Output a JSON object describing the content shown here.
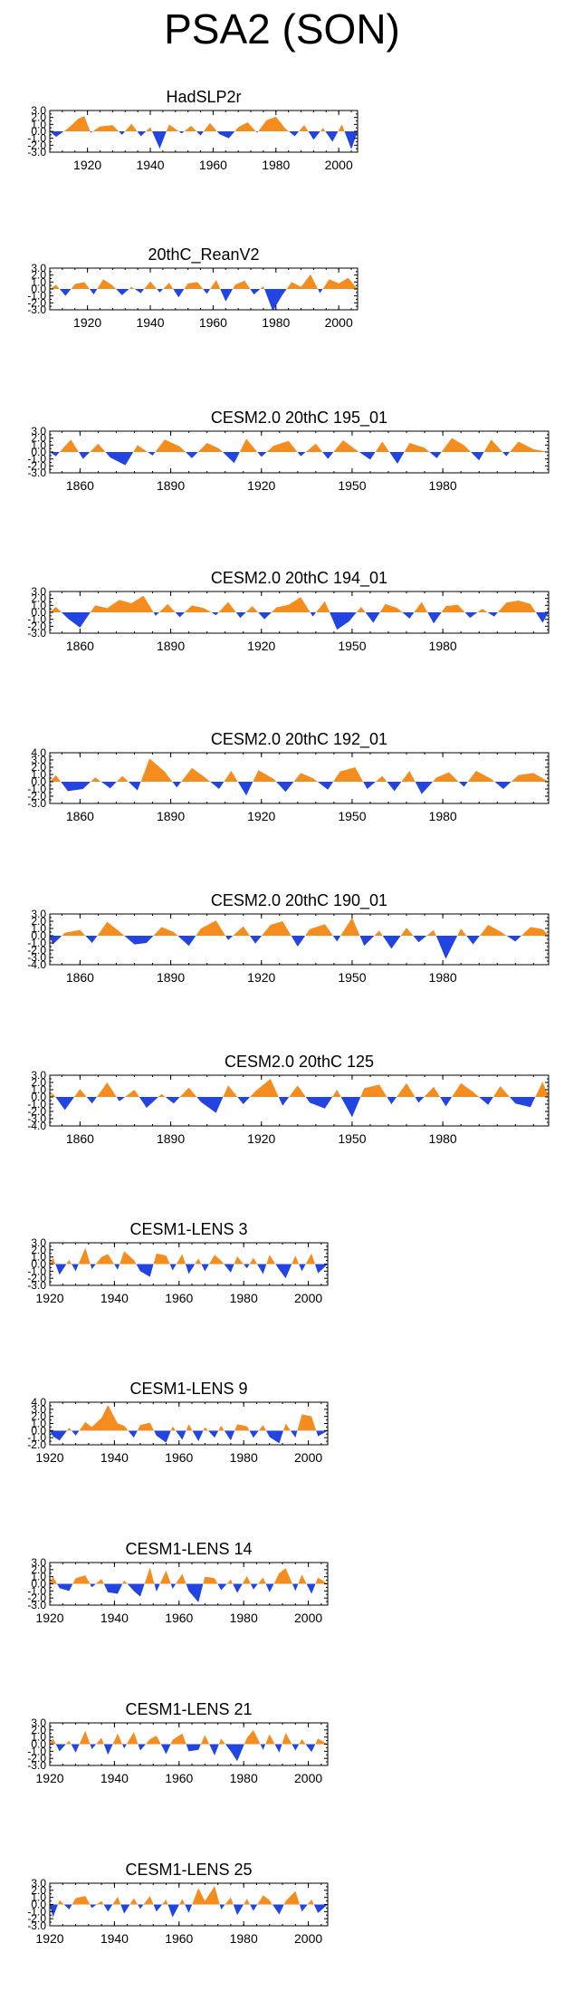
{
  "page": {
    "title": "PSA2 (SON)"
  },
  "colors": {
    "positive": "#f58c1e",
    "negative": "#2244e0",
    "axis": "#000000",
    "background": "#ffffff"
  },
  "chart_data": [
    {
      "type": "area",
      "title": "HadSLP2r",
      "xlim": [
        1908,
        2006
      ],
      "ylim": [
        -3.0,
        3.0
      ],
      "yticks": [
        "3.0",
        "2.0",
        "1.0",
        "0.0",
        "-1.0",
        "-2.0",
        "-3.0"
      ],
      "xticks": [
        "1920",
        "1940",
        "1960",
        "1980",
        "2000"
      ],
      "x": [
        1910,
        1914,
        1917,
        1919,
        1921,
        1924,
        1928,
        1931,
        1934,
        1937,
        1940,
        1943,
        1946,
        1950,
        1953,
        1956,
        1959,
        1962,
        1965,
        1968,
        1971,
        1974,
        1977,
        1980,
        1983,
        1986,
        1989,
        1992,
        1995,
        1998,
        2001,
        2004
      ],
      "values": [
        -0.8,
        0.5,
        1.8,
        2.2,
        -0.2,
        0.7,
        0.9,
        -0.5,
        1.1,
        -0.7,
        0.6,
        -2.5,
        1.0,
        -0.3,
        0.8,
        -0.6,
        1.2,
        -0.4,
        -1.0,
        0.6,
        1.3,
        -0.2,
        1.6,
        2.1,
        0.4,
        -0.7,
        0.9,
        -1.2,
        0.5,
        -1.5,
        1.0,
        -2.6
      ]
    },
    {
      "type": "area",
      "title": "20thC_ReanV2",
      "xlim": [
        1908,
        2006
      ],
      "ylim": [
        -3.0,
        3.0
      ],
      "yticks": [
        "3.0",
        "2.0",
        "1.0",
        "0.0",
        "-1.0",
        "-2.0",
        "-3.0"
      ],
      "xticks": [
        "1920",
        "1940",
        "1960",
        "1980",
        "2000"
      ],
      "x": [
        1910,
        1913,
        1916,
        1919,
        1922,
        1925,
        1928,
        1931,
        1934,
        1937,
        1940,
        1943,
        1946,
        1949,
        1952,
        1955,
        1958,
        1961,
        1964,
        1967,
        1970,
        1973,
        1976,
        1979,
        1982,
        1985,
        1988,
        1991,
        1994,
        1997,
        2000,
        2003
      ],
      "values": [
        0.6,
        -1.0,
        0.7,
        1.0,
        -0.8,
        1.4,
        0.5,
        -0.9,
        0.3,
        -0.6,
        1.1,
        -0.5,
        0.9,
        -1.2,
        0.8,
        1.0,
        -0.7,
        1.3,
        -1.8,
        0.6,
        1.2,
        -0.8,
        0.4,
        -3.2,
        -0.9,
        1.0,
        0.3,
        2.1,
        -0.6,
        1.4,
        0.8,
        1.6
      ]
    },
    {
      "type": "area",
      "title": "CESM2.0 20thC 195_01",
      "xlim": [
        1850,
        2015
      ],
      "ylim": [
        -3.0,
        3.0
      ],
      "yticks": [
        "3.0",
        "2.0",
        "1.0",
        "0.0",
        "-1.0",
        "-2.0",
        "-3.0"
      ],
      "xticks": [
        "1860",
        "1890",
        "1920",
        "1950",
        "1980"
      ],
      "x": [
        1852,
        1857,
        1861,
        1866,
        1870,
        1875,
        1879,
        1884,
        1888,
        1893,
        1897,
        1902,
        1906,
        1911,
        1915,
        1920,
        1924,
        1929,
        1933,
        1938,
        1942,
        1947,
        1951,
        1956,
        1960,
        1965,
        1969,
        1974,
        1978,
        1983,
        1987,
        1992,
        1996,
        2001,
        2005,
        2010
      ],
      "values": [
        -0.6,
        1.8,
        -1.0,
        1.2,
        -0.8,
        -1.9,
        1.0,
        -0.5,
        1.8,
        0.8,
        -0.9,
        1.3,
        0.5,
        -1.6,
        1.9,
        -0.7,
        0.9,
        1.6,
        -0.6,
        1.2,
        -1.0,
        1.7,
        0.4,
        -1.1,
        1.5,
        -1.7,
        1.3,
        0.6,
        -0.9,
        2.0,
        1.0,
        -1.2,
        1.8,
        -0.6,
        1.5,
        0.4
      ]
    },
    {
      "type": "area",
      "title": "CESM2.0 20thC 194_01",
      "xlim": [
        1850,
        2015
      ],
      "ylim": [
        -3.0,
        3.0
      ],
      "yticks": [
        "3.0",
        "2.0",
        "1.0",
        "0.0",
        "-1.0",
        "-2.0",
        "-3.0"
      ],
      "xticks": [
        "1860",
        "1890",
        "1920",
        "1950",
        "1980"
      ],
      "x": [
        1852,
        1856,
        1860,
        1865,
        1869,
        1873,
        1877,
        1881,
        1885,
        1889,
        1893,
        1897,
        1901,
        1905,
        1909,
        1913,
        1917,
        1921,
        1925,
        1929,
        1933,
        1937,
        1941,
        1945,
        1949,
        1953,
        1957,
        1961,
        1965,
        1969,
        1973,
        1977,
        1981,
        1985,
        1989,
        1993,
        1997,
        2001,
        2005,
        2009,
        2013
      ],
      "values": [
        0.8,
        -0.9,
        -2.2,
        1.0,
        0.6,
        1.8,
        1.3,
        2.4,
        -0.5,
        1.2,
        -0.7,
        1.0,
        0.6,
        -0.4,
        1.5,
        -0.8,
        0.9,
        -1.0,
        0.7,
        1.1,
        2.2,
        -0.6,
        1.6,
        -2.5,
        -1.3,
        0.8,
        -1.5,
        1.2,
        0.6,
        -0.9,
        1.5,
        -1.6,
        0.9,
        1.1,
        -0.8,
        0.5,
        -0.6,
        1.4,
        1.7,
        1.2,
        -1.5
      ]
    },
    {
      "type": "area",
      "title": "CESM2.0 20thC 192_01",
      "xlim": [
        1850,
        2015
      ],
      "ylim": [
        -3.0,
        4.0
      ],
      "yticks": [
        "4.0",
        "3.0",
        "2.0",
        "1.0",
        "0.0",
        "-1.0",
        "-2.0",
        "-3.0"
      ],
      "xticks": [
        "1860",
        "1890",
        "1920",
        "1950",
        "1980"
      ],
      "x": [
        1852,
        1856,
        1861,
        1865,
        1870,
        1874,
        1879,
        1883,
        1888,
        1892,
        1897,
        1901,
        1906,
        1910,
        1915,
        1919,
        1924,
        1928,
        1933,
        1937,
        1942,
        1946,
        1951,
        1955,
        1960,
        1964,
        1969,
        1973,
        1978,
        1982,
        1987,
        1991,
        1996,
        2000,
        2005,
        2010
      ],
      "values": [
        0.9,
        -1.3,
        -1.0,
        0.6,
        -0.9,
        0.8,
        -1.2,
        3.2,
        1.4,
        -0.8,
        1.9,
        0.7,
        -1.0,
        1.5,
        -1.9,
        1.6,
        0.4,
        -1.4,
        1.2,
        0.5,
        -1.1,
        1.4,
        2.0,
        -1.0,
        0.8,
        -1.3,
        1.5,
        -1.7,
        0.6,
        1.3,
        -0.7,
        1.5,
        0.4,
        -1.0,
        0.9,
        1.2
      ]
    },
    {
      "type": "area",
      "title": "CESM2.0 20thC 190_01",
      "xlim": [
        1850,
        2015
      ],
      "ylim": [
        -4.0,
        3.0
      ],
      "yticks": [
        "3.0",
        "2.0",
        "1.0",
        "0.0",
        "-1.0",
        "-2.0",
        "-3.0",
        "-4.0"
      ],
      "xticks": [
        "1860",
        "1890",
        "1920",
        "1950",
        "1980"
      ],
      "x": [
        1851,
        1855,
        1860,
        1864,
        1869,
        1873,
        1878,
        1882,
        1887,
        1891,
        1896,
        1900,
        1905,
        1909,
        1914,
        1918,
        1923,
        1927,
        1932,
        1936,
        1941,
        1945,
        1950,
        1954,
        1959,
        1963,
        1968,
        1972,
        1977,
        1981,
        1986,
        1990,
        1995,
        1999,
        2004,
        2009,
        2013
      ],
      "values": [
        -1.2,
        0.4,
        0.8,
        -1.0,
        1.9,
        0.6,
        -1.2,
        -1.0,
        1.2,
        0.5,
        -1.4,
        1.0,
        2.1,
        -0.6,
        1.3,
        -1.1,
        1.5,
        2.0,
        -1.5,
        0.9,
        1.6,
        -0.8,
        2.5,
        -1.4,
        0.7,
        -1.8,
        1.1,
        -0.9,
        0.8,
        -3.2,
        1.0,
        -1.2,
        1.5,
        0.6,
        -0.8,
        1.2,
        0.9
      ]
    },
    {
      "type": "area",
      "title": "CESM2.0 20thC 125",
      "xlim": [
        1850,
        2015
      ],
      "ylim": [
        -4.0,
        3.0
      ],
      "yticks": [
        "3.0",
        "2.0",
        "1.0",
        "0.0",
        "-1.0",
        "-2.0",
        "-3.0",
        "-4.0"
      ],
      "xticks": [
        "1860",
        "1890",
        "1920",
        "1950",
        "1980"
      ],
      "x": [
        1851,
        1855,
        1860,
        1864,
        1869,
        1873,
        1878,
        1882,
        1887,
        1891,
        1896,
        1900,
        1905,
        1909,
        1914,
        1918,
        1923,
        1927,
        1932,
        1936,
        1941,
        1945,
        1950,
        1954,
        1959,
        1963,
        1968,
        1972,
        1977,
        1981,
        1986,
        1990,
        1995,
        1999,
        2004,
        2009,
        2013
      ],
      "values": [
        0.5,
        -1.8,
        1.1,
        -0.9,
        2.0,
        -0.6,
        1.0,
        -1.5,
        0.4,
        -0.9,
        1.3,
        -0.7,
        -2.2,
        1.6,
        -1.0,
        0.8,
        2.5,
        -1.2,
        1.6,
        -0.8,
        -1.6,
        1.0,
        -2.8,
        1.2,
        1.7,
        -1.0,
        1.9,
        -0.8,
        1.4,
        -1.3,
        1.9,
        0.7,
        -1.1,
        1.5,
        -0.9,
        -1.4,
        2.1
      ]
    },
    {
      "type": "area",
      "title": "CESM1-LENS 3",
      "xlim": [
        1920,
        2006
      ],
      "ylim": [
        -3.0,
        3.0
      ],
      "yticks": [
        "3.0",
        "2.0",
        "1.0",
        "0.0",
        "-1.0",
        "-2.0",
        "-3.0"
      ],
      "xticks": [
        "1920",
        "1940",
        "1960",
        "1980",
        "2000"
      ],
      "x": [
        1921,
        1923,
        1926,
        1928,
        1931,
        1933,
        1936,
        1938,
        1941,
        1943,
        1946,
        1948,
        1951,
        1953,
        1956,
        1958,
        1961,
        1963,
        1966,
        1968,
        1971,
        1973,
        1976,
        1978,
        1981,
        1983,
        1986,
        1988,
        1991,
        1993,
        1996,
        1998,
        2001,
        2003
      ],
      "values": [
        0.9,
        -1.5,
        0.6,
        -1.0,
        2.3,
        -0.7,
        1.0,
        1.4,
        -0.8,
        1.8,
        0.6,
        -1.0,
        -1.8,
        1.5,
        1.2,
        -0.9,
        1.4,
        -1.4,
        0.8,
        -1.0,
        1.3,
        0.5,
        -1.2,
        1.1,
        -0.6,
        0.9,
        -1.4,
        1.3,
        -0.8,
        -2.0,
        1.2,
        -1.0,
        1.5,
        -1.3
      ]
    },
    {
      "type": "area",
      "title": "CESM1-LENS 9",
      "xlim": [
        1920,
        2006
      ],
      "ylim": [
        -2.0,
        4.0
      ],
      "yticks": [
        "4.0",
        "3.0",
        "2.0",
        "1.0",
        "0.0",
        "-1.0",
        "-2.0"
      ],
      "xticks": [
        "1920",
        "1940",
        "1960",
        "1980",
        "2000"
      ],
      "x": [
        1921,
        1923,
        1926,
        1928,
        1931,
        1933,
        1936,
        1938,
        1941,
        1943,
        1946,
        1948,
        1951,
        1953,
        1956,
        1958,
        1961,
        1963,
        1966,
        1968,
        1971,
        1973,
        1976,
        1978,
        1981,
        1983,
        1986,
        1988,
        1991,
        1993,
        1996,
        1998,
        2001,
        2003
      ],
      "values": [
        -0.8,
        -1.4,
        0.4,
        -0.7,
        1.2,
        0.5,
        1.8,
        3.6,
        1.0,
        0.7,
        -1.0,
        0.8,
        1.1,
        -0.7,
        -1.7,
        0.6,
        -1.3,
        0.9,
        -1.5,
        0.5,
        -1.0,
        0.7,
        -1.4,
        0.9,
        0.6,
        -1.0,
        0.8,
        -0.9,
        -1.8,
        1.0,
        -1.0,
        2.3,
        2.0,
        -0.8
      ]
    },
    {
      "type": "area",
      "title": "CESM1-LENS 14",
      "xlim": [
        1920,
        2006
      ],
      "ylim": [
        -3.0,
        3.0
      ],
      "yticks": [
        "3.0",
        "2.0",
        "1.0",
        "0.0",
        "-1.0",
        "-2.0",
        "-3.0"
      ],
      "xticks": [
        "1920",
        "1940",
        "1960",
        "1980",
        "2000"
      ],
      "x": [
        1921,
        1923,
        1926,
        1928,
        1931,
        1933,
        1936,
        1938,
        1941,
        1943,
        1946,
        1948,
        1951,
        1953,
        1956,
        1958,
        1961,
        1963,
        1966,
        1968,
        1971,
        1973,
        1976,
        1978,
        1981,
        1983,
        1986,
        1988,
        1991,
        1993,
        1996,
        1998,
        2001,
        2003
      ],
      "values": [
        1.0,
        -0.6,
        -1.0,
        0.8,
        1.2,
        -0.5,
        0.7,
        -1.2,
        -1.4,
        0.5,
        -1.0,
        -1.8,
        2.3,
        -1.1,
        1.9,
        -0.7,
        1.4,
        -1.0,
        -2.6,
        1.0,
        0.8,
        -0.9,
        0.6,
        -1.3,
        1.1,
        -0.8,
        0.9,
        -1.2,
        1.5,
        2.2,
        -1.0,
        1.3,
        -1.4,
        0.9
      ]
    },
    {
      "type": "area",
      "title": "CESM1-LENS 21",
      "xlim": [
        1920,
        2006
      ],
      "ylim": [
        -3.0,
        3.0
      ],
      "yticks": [
        "3.0",
        "2.0",
        "1.0",
        "0.0",
        "-1.0",
        "-2.0",
        "-3.0"
      ],
      "xticks": [
        "1920",
        "1940",
        "1960",
        "1980",
        "2000"
      ],
      "x": [
        1921,
        1923,
        1926,
        1928,
        1931,
        1933,
        1936,
        1938,
        1941,
        1943,
        1946,
        1948,
        1951,
        1953,
        1956,
        1958,
        1961,
        1963,
        1966,
        1968,
        1971,
        1973,
        1976,
        1978,
        1981,
        1983,
        1986,
        1988,
        1991,
        1993,
        1996,
        1998,
        2001,
        2003
      ],
      "values": [
        0.8,
        -1.0,
        0.5,
        -1.2,
        1.9,
        -0.7,
        0.9,
        -1.5,
        1.5,
        -0.6,
        1.7,
        -0.9,
        0.7,
        1.2,
        -1.4,
        0.6,
        1.5,
        -1.0,
        -0.8,
        1.3,
        -1.6,
        0.8,
        -1.0,
        -2.4,
        0.9,
        2.0,
        -0.8,
        1.4,
        -1.2,
        1.6,
        -0.9,
        0.7,
        -1.1,
        0.8
      ]
    },
    {
      "type": "area",
      "title": "CESM1-LENS 25",
      "xlim": [
        1920,
        2006
      ],
      "ylim": [
        -3.0,
        3.0
      ],
      "yticks": [
        "3.0",
        "2.0",
        "1.0",
        "0.0",
        "-1.0",
        "-2.0",
        "-3.0"
      ],
      "xticks": [
        "1920",
        "1940",
        "1960",
        "1980",
        "2000"
      ],
      "x": [
        1921,
        1923,
        1926,
        1928,
        1931,
        1933,
        1936,
        1938,
        1941,
        1943,
        1946,
        1948,
        1951,
        1953,
        1956,
        1958,
        1961,
        1963,
        1966,
        1968,
        1971,
        1973,
        1976,
        1978,
        1981,
        1983,
        1986,
        1988,
        1991,
        1993,
        1996,
        1998,
        2001,
        2003
      ],
      "values": [
        -1.8,
        0.6,
        -0.7,
        0.9,
        1.2,
        -0.5,
        0.5,
        -1.0,
        1.1,
        -1.3,
        0.9,
        -0.6,
        1.2,
        -1.0,
        0.7,
        -1.8,
        0.8,
        -1.2,
        2.3,
        0.5,
        2.6,
        -0.7,
        1.0,
        -1.5,
        0.8,
        -0.9,
        1.3,
        0.6,
        -1.4,
        0.5,
        1.9,
        -1.0,
        0.7,
        -1.2
      ]
    }
  ]
}
